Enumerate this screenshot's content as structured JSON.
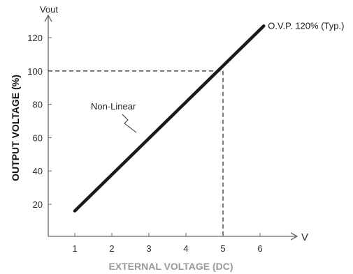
{
  "chart_data": {
    "type": "line",
    "xlabel": "EXTERNAL VOLTAGE (DC)",
    "ylabel": "OUTPUT VOLTAGE (%)",
    "x_axis_unit": "V",
    "y_axis_unit": "Vout",
    "xlim": [
      0.3,
      6.6
    ],
    "ylim": [
      0,
      130
    ],
    "x_ticks": [
      "1",
      "2",
      "3",
      "4",
      "5",
      "6"
    ],
    "y_ticks": [
      "20",
      "40",
      "60",
      "80",
      "100",
      "120"
    ],
    "series": [
      {
        "x": [
          1,
          6.1
        ],
        "y": [
          16,
          127
        ]
      }
    ],
    "reference_lines": {
      "x": 5,
      "y": 100
    },
    "annotations": {
      "curve_label": "Non-Linear",
      "ovp_label": "O.V.P. 120% (Typ.)"
    },
    "colors": {
      "line": "#1a1a1a",
      "axis": "#666666",
      "reference": "#333333",
      "xlabel": "#9a9a9a",
      "ylabel": "#111111"
    },
    "grid": false,
    "legend": "none"
  }
}
